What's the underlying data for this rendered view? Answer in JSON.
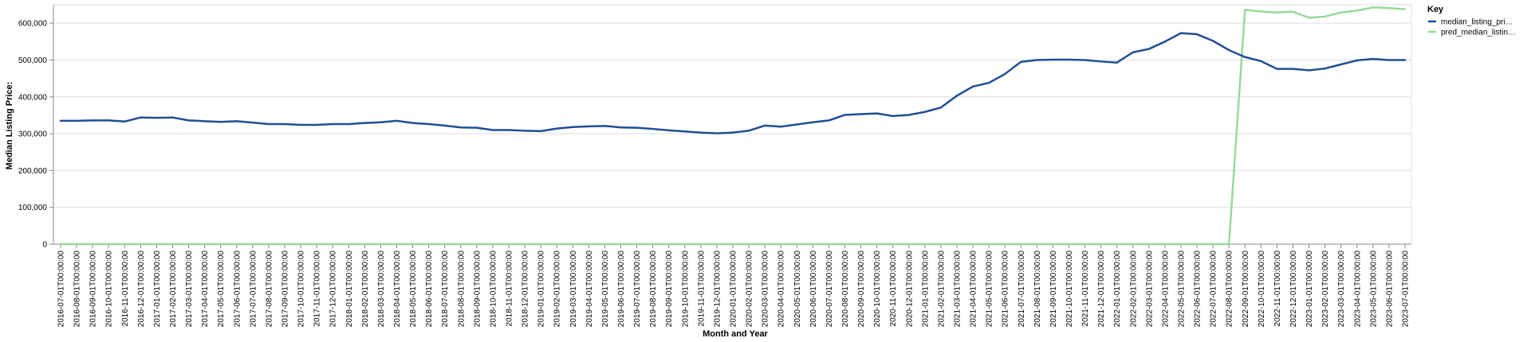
{
  "chart_data": {
    "type": "line",
    "xlabel": "Month and Year",
    "ylabel": "Median Listing Price:",
    "ylim": [
      0,
      650000
    ],
    "yticks": [
      0,
      100000,
      200000,
      300000,
      400000,
      500000,
      600000
    ],
    "ytick_labels": [
      "0",
      "100,000",
      "200,000",
      "300,000",
      "400,000",
      "500,000",
      "600,000"
    ],
    "grid": true,
    "legend": {
      "title": "Key",
      "placement": "top-right"
    },
    "x": [
      "2016-07-01T00:00:00",
      "2016-08-01T00:00:00",
      "2016-09-01T00:00:00",
      "2016-10-01T00:00:00",
      "2016-11-01T00:00:00",
      "2016-12-01T00:00:00",
      "2017-01-01T00:00:00",
      "2017-02-01T00:00:00",
      "2017-03-01T00:00:00",
      "2017-04-01T00:00:00",
      "2017-05-01T00:00:00",
      "2017-06-01T00:00:00",
      "2017-07-01T00:00:00",
      "2017-08-01T00:00:00",
      "2017-09-01T00:00:00",
      "2017-10-01T00:00:00",
      "2017-11-01T00:00:00",
      "2017-12-01T00:00:00",
      "2018-01-01T00:00:00",
      "2018-02-01T00:00:00",
      "2018-03-01T00:00:00",
      "2018-04-01T00:00:00",
      "2018-05-01T00:00:00",
      "2018-06-01T00:00:00",
      "2018-07-01T00:00:00",
      "2018-08-01T00:00:00",
      "2018-09-01T00:00:00",
      "2018-10-01T00:00:00",
      "2018-11-01T00:00:00",
      "2018-12-01T00:00:00",
      "2019-01-01T00:00:00",
      "2019-02-01T00:00:00",
      "2019-03-01T00:00:00",
      "2019-04-01T00:00:00",
      "2019-05-01T00:00:00",
      "2019-06-01T00:00:00",
      "2019-07-01T00:00:00",
      "2019-08-01T00:00:00",
      "2019-09-01T00:00:00",
      "2019-10-01T00:00:00",
      "2019-11-01T00:00:00",
      "2019-12-01T00:00:00",
      "2020-01-01T00:00:00",
      "2020-02-01T00:00:00",
      "2020-03-01T00:00:00",
      "2020-04-01T00:00:00",
      "2020-05-01T00:00:00",
      "2020-06-01T00:00:00",
      "2020-07-01T00:00:00",
      "2020-08-01T00:00:00",
      "2020-09-01T00:00:00",
      "2020-10-01T00:00:00",
      "2020-11-01T00:00:00",
      "2020-12-01T00:00:00",
      "2021-01-01T00:00:00",
      "2021-02-01T00:00:00",
      "2021-03-01T00:00:00",
      "2021-04-01T00:00:00",
      "2021-05-01T00:00:00",
      "2021-06-01T00:00:00",
      "2021-07-01T00:00:00",
      "2021-08-01T00:00:00",
      "2021-09-01T00:00:00",
      "2021-10-01T00:00:00",
      "2021-11-01T00:00:00",
      "2021-12-01T00:00:00",
      "2022-01-01T00:00:00",
      "2022-02-01T00:00:00",
      "2022-03-01T00:00:00",
      "2022-04-01T00:00:00",
      "2022-05-01T00:00:00",
      "2022-06-01T00:00:00",
      "2022-07-01T00:00:00",
      "2022-08-01T00:00:00",
      "2022-09-01T00:00:00",
      "2022-10-01T00:00:00",
      "2022-11-01T00:00:00",
      "2022-12-01T00:00:00",
      "2023-01-01T00:00:00",
      "2023-02-01T00:00:00",
      "2023-03-01T00:00:00",
      "2023-04-01T00:00:00",
      "2023-05-01T00:00:00",
      "2023-06-01T00:00:00",
      "2023-07-01T00:00:00"
    ],
    "series": [
      {
        "name": "median_listing_pri…",
        "color": "#1f4e96",
        "values": [
          335000,
          335000,
          336000,
          336000,
          333000,
          344000,
          343000,
          344000,
          336000,
          334000,
          332000,
          334000,
          330000,
          326000,
          326000,
          324000,
          324000,
          326000,
          326000,
          329000,
          331000,
          335000,
          329000,
          326000,
          322000,
          317000,
          316000,
          310000,
          310000,
          308000,
          307000,
          314000,
          318000,
          320000,
          321000,
          317000,
          316000,
          313000,
          309000,
          306000,
          303000,
          301000,
          303000,
          308000,
          322000,
          319000,
          325000,
          331000,
          336000,
          351000,
          353000,
          355000,
          348000,
          351000,
          359000,
          371000,
          403000,
          428000,
          438000,
          462000,
          495000,
          500000,
          501000,
          501000,
          500000,
          496000,
          493000,
          521000,
          530000,
          550000,
          573000,
          570000,
          552000,
          527000,
          508000,
          497000,
          476000,
          476000,
          472000,
          477000,
          488000,
          499000,
          503000,
          500000,
          500000
        ]
      },
      {
        "name": "pred_median_listin…",
        "color": "#98d99a",
        "values": [
          0,
          0,
          0,
          0,
          0,
          0,
          0,
          0,
          0,
          0,
          0,
          0,
          0,
          0,
          0,
          0,
          0,
          0,
          0,
          0,
          0,
          0,
          0,
          0,
          0,
          0,
          0,
          0,
          0,
          0,
          0,
          0,
          0,
          0,
          0,
          0,
          0,
          0,
          0,
          0,
          0,
          0,
          0,
          0,
          0,
          0,
          0,
          0,
          0,
          0,
          0,
          0,
          0,
          0,
          0,
          0,
          0,
          0,
          0,
          0,
          0,
          0,
          0,
          0,
          0,
          0,
          0,
          0,
          0,
          0,
          0,
          0,
          0,
          0,
          636000,
          632000,
          629000,
          631000,
          615000,
          618000,
          629000,
          634000,
          643000,
          641000,
          638000
        ]
      }
    ]
  }
}
